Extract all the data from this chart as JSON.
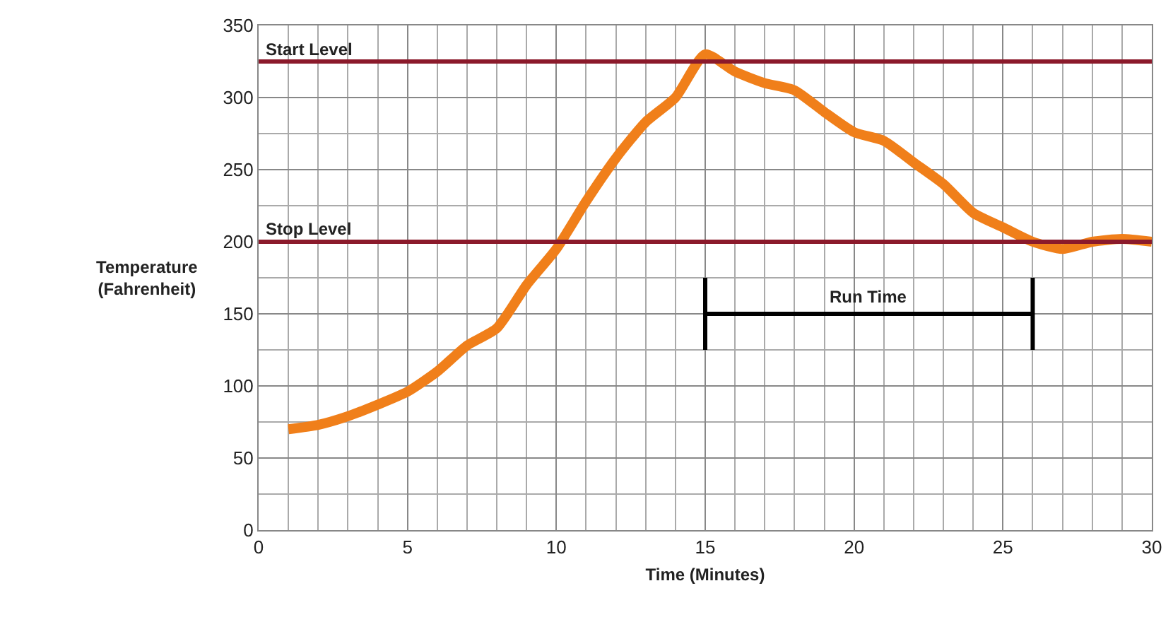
{
  "chart_data": {
    "type": "line",
    "xlabel": "Time (Minutes)",
    "ylabel": "Temperature\n(Fahrenheit)",
    "x": [
      1,
      2,
      3,
      4,
      5,
      6,
      7,
      8,
      9,
      10,
      11,
      12,
      13,
      14,
      15,
      16,
      17,
      18,
      19,
      20,
      21,
      22,
      23,
      24,
      25,
      26,
      27,
      28,
      29,
      30
    ],
    "series": [
      {
        "color": "#f07f1a",
        "values": [
          70,
          73,
          79,
          87,
          96,
          110,
          128,
          140,
          170,
          195,
          228,
          258,
          283,
          300,
          330,
          318,
          310,
          305,
          290,
          276,
          270,
          255,
          240,
          220,
          210,
          200,
          195,
          200,
          202,
          200
        ]
      },
      {
        "color": "#000000",
        "x": [
          15,
          26
        ],
        "values": [
          150,
          150
        ],
        "errors": [
          25,
          25
        ]
      }
    ],
    "xlim": [
      0,
      30
    ],
    "xticks": [
      0,
      5,
      10,
      15,
      20,
      25,
      30
    ],
    "ylim": [
      0,
      350
    ],
    "yticks": [
      0,
      50,
      100,
      150,
      200,
      250,
      300,
      350
    ],
    "ref_lines": [
      {
        "axis": "y",
        "value": 325,
        "label": "Start Level",
        "color": "#8b1a2b"
      },
      {
        "axis": "y",
        "value": 200,
        "label": "Stop Level",
        "color": "#8b1a2b"
      }
    ],
    "annotations": [
      {
        "text": "Run Time",
        "x": 20.5,
        "y": 150
      }
    ],
    "grid": true,
    "marker": "none",
    "line_style": "solid"
  }
}
